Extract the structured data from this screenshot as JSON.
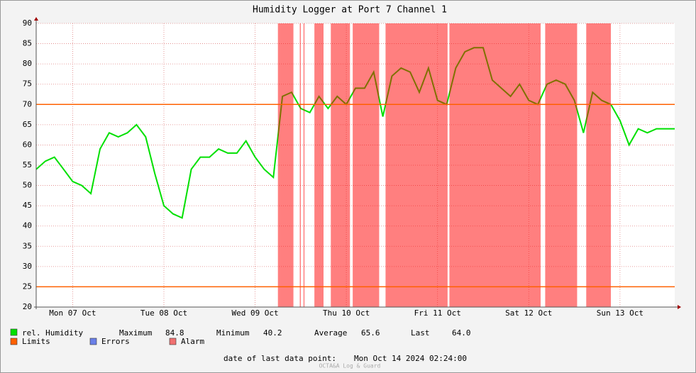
{
  "chart_data": {
    "type": "line",
    "title": "Humidity Logger at Port 7 Channel 1",
    "x": [
      0.1,
      0.2,
      0.3,
      0.4,
      0.5,
      0.6,
      0.7,
      0.8,
      0.9,
      1.0,
      1.1,
      1.2,
      1.3,
      1.4,
      1.5,
      1.6,
      1.7,
      1.8,
      1.9,
      2.0,
      2.1,
      2.2,
      2.3,
      2.4,
      2.5,
      2.6,
      2.7,
      2.8,
      2.9,
      3.0,
      3.1,
      3.2,
      3.3,
      3.4,
      3.5,
      3.6,
      3.7,
      3.8,
      3.9,
      4.0,
      4.1,
      4.2,
      4.3,
      4.4,
      4.5,
      4.6,
      4.7,
      4.8,
      4.9,
      5.0,
      5.1,
      5.2,
      5.3,
      5.4,
      5.5,
      5.6,
      5.7,
      5.8,
      5.9,
      6.0,
      6.1,
      6.2,
      6.3,
      6.4,
      6.5,
      6.6,
      6.7,
      6.8,
      6.9,
      7.0,
      7.1
    ],
    "series": [
      {
        "name": "rel. Humidity",
        "color": "#00e000",
        "values": [
          54,
          56,
          57,
          54,
          51,
          50,
          48,
          59,
          63,
          62,
          63,
          65,
          62,
          53,
          45,
          43,
          42,
          54,
          57,
          57,
          59,
          58,
          58,
          61,
          57,
          54,
          52,
          72,
          73,
          69,
          68,
          72,
          69,
          72,
          70,
          74,
          74,
          78,
          67,
          77,
          79,
          78,
          73,
          79,
          71,
          70,
          79,
          83,
          84,
          84,
          76,
          74,
          72,
          75,
          71,
          70,
          75,
          76,
          75,
          71,
          63,
          73,
          71,
          70,
          66,
          60,
          64,
          63,
          64,
          64,
          64
        ]
      }
    ],
    "xlim": [
      0.1,
      7.1
    ],
    "xticks": [
      {
        "value": 0.5,
        "label": "Mon 07 Oct"
      },
      {
        "value": 1.5,
        "label": "Tue 08 Oct"
      },
      {
        "value": 2.5,
        "label": "Wed 09 Oct"
      },
      {
        "value": 3.5,
        "label": "Thu 10 Oct"
      },
      {
        "value": 4.5,
        "label": "Fri 11 Oct"
      },
      {
        "value": 5.5,
        "label": "Sat 12 Oct"
      },
      {
        "value": 6.5,
        "label": "Sun 13 Oct"
      }
    ],
    "ylim": [
      20,
      90
    ],
    "yticks": [
      20,
      25,
      30,
      35,
      40,
      45,
      50,
      55,
      60,
      65,
      70,
      75,
      80,
      85,
      90
    ],
    "grid": true,
    "limits": {
      "name": "Limits",
      "color": "#ff6000",
      "values": [
        70,
        25
      ]
    },
    "errors": {
      "name": "Errors",
      "color": "#6a7fe8"
    },
    "alarm": {
      "name": "Alarm",
      "color": "#ff0000",
      "periods": [
        [
          2.75,
          2.92
        ],
        [
          2.99,
          3.0
        ],
        [
          3.03,
          3.04
        ],
        [
          3.15,
          3.25
        ],
        [
          3.33,
          3.54
        ],
        [
          3.57,
          3.86
        ],
        [
          3.93,
          4.61
        ],
        [
          4.63,
          5.63
        ],
        [
          5.68,
          6.03
        ],
        [
          6.13,
          6.4
        ]
      ]
    },
    "stats": [
      {
        "label": "Maximum",
        "value": "84.8"
      },
      {
        "label": "Minimum",
        "value": "40.2"
      },
      {
        "label": "Average",
        "value": "65.6"
      },
      {
        "label": "Last",
        "value": "64.0"
      }
    ],
    "footer_label": "date of last data point:",
    "last_date": "Mon Oct 14 2024 02:24:00",
    "brand": "OCTA&A Log & Guard"
  }
}
